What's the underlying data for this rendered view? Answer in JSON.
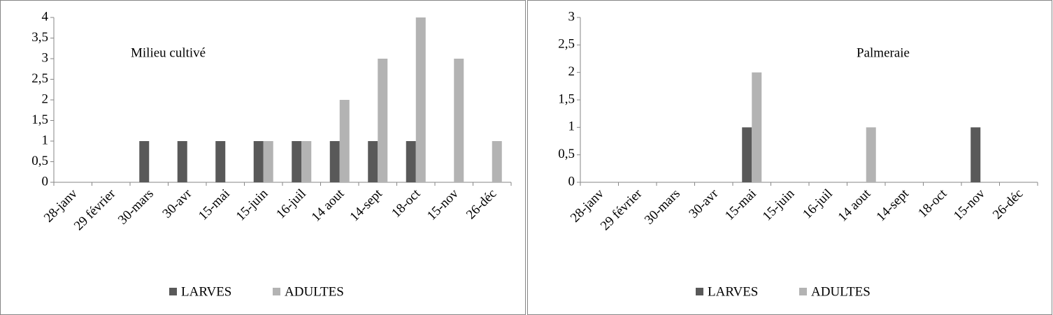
{
  "chart_data": [
    {
      "type": "bar",
      "title": "Milieu cultivé",
      "categories": [
        "28-janv",
        "29 février",
        "30-mars",
        "30-avr",
        "15-mai",
        "15-juin",
        "16-juil",
        "14 aout",
        "14-sept",
        "18-oct",
        "15-nov",
        "26-déc"
      ],
      "series": [
        {
          "name": "LARVES",
          "color": "#595959",
          "values": [
            0,
            0,
            1,
            1,
            1,
            1,
            1,
            1,
            1,
            1,
            0,
            0
          ]
        },
        {
          "name": "ADULTES",
          "color": "#b3b3b3",
          "values": [
            0,
            0,
            0,
            0,
            0,
            1,
            1,
            2,
            3,
            4,
            3,
            1
          ]
        }
      ],
      "ylim": [
        0,
        4
      ],
      "yticks": [
        0,
        {
          "value": 0.5,
          "label": "0,5"
        },
        1,
        {
          "value": 1.5,
          "label": "1,5"
        },
        2,
        {
          "value": 2.5,
          "label": "2,5"
        },
        3,
        {
          "value": 3.5,
          "label": "3,5"
        },
        4
      ],
      "grid": false,
      "legend": "bottom"
    },
    {
      "type": "bar",
      "title": "Palmeraie",
      "categories": [
        "28-janv",
        "29 février",
        "30-mars",
        "30-avr",
        "15-mai",
        "15-juin",
        "16-juil",
        "14 aout",
        "14-sept",
        "18-oct",
        "15-nov",
        "26-déc"
      ],
      "series": [
        {
          "name": "LARVES",
          "color": "#595959",
          "values": [
            0,
            0,
            0,
            0,
            1,
            0,
            0,
            0,
            0,
            0,
            1,
            0
          ]
        },
        {
          "name": "ADULTES",
          "color": "#b3b3b3",
          "values": [
            0,
            0,
            0,
            0,
            2,
            0,
            0,
            1,
            0,
            0,
            0,
            0
          ]
        }
      ],
      "ylim": [
        0,
        3
      ],
      "yticks": [
        0,
        {
          "value": 0.5,
          "label": "0,5"
        },
        1,
        {
          "value": 1.5,
          "label": "1,5"
        },
        2,
        {
          "value": 2.5,
          "label": "2,5"
        },
        3
      ],
      "grid": false,
      "legend": "bottom"
    }
  ]
}
